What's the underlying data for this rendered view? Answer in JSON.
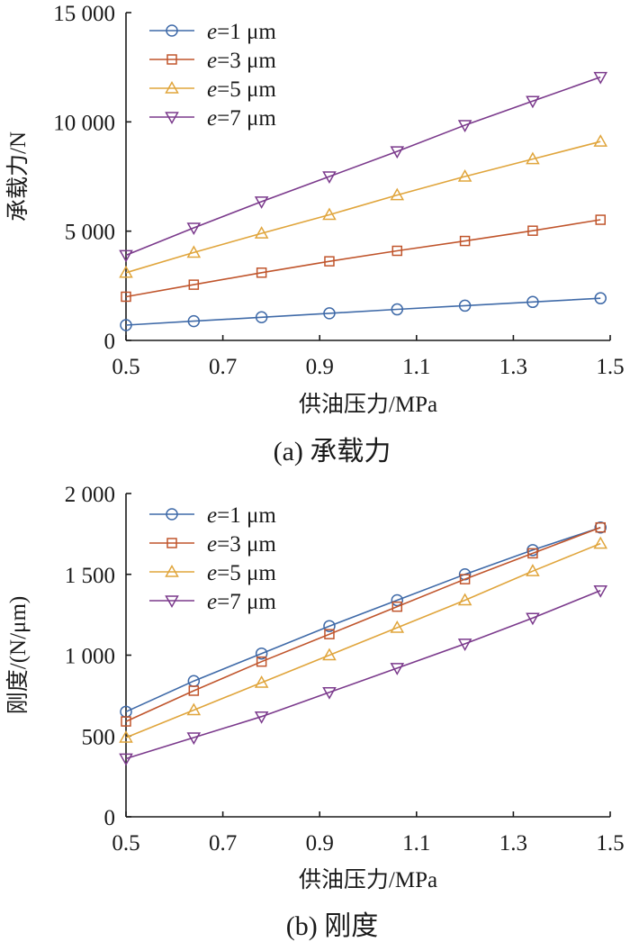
{
  "chart_data": [
    {
      "type": "line",
      "title": "",
      "caption": "(a)  承载力",
      "xlabel": "供油压力/MPa",
      "ylabel": "承载力/N",
      "xlim": [
        0.5,
        1.5
      ],
      "ylim": [
        0,
        15000
      ],
      "xticks": [
        0.5,
        0.7,
        0.9,
        1.1,
        1.3,
        1.5
      ],
      "xtick_labels": [
        "0.5",
        "0.7",
        "0.9",
        "1.1",
        "1.3",
        "1.5"
      ],
      "yticks": [
        0,
        5000,
        10000,
        15000
      ],
      "ytick_labels": [
        "0",
        "5 000",
        "10 000",
        "15 000"
      ],
      "grid": false,
      "legend_position": "top-left",
      "x": [
        0.5,
        0.64,
        0.78,
        0.92,
        1.06,
        1.2,
        1.34,
        1.48
      ],
      "series": [
        {
          "name": "e=1 μm",
          "name_var": "e",
          "name_rest": "=1 μm",
          "color": "#3f6aa8",
          "marker": "circle",
          "values": [
            700,
            880,
            1060,
            1240,
            1420,
            1590,
            1760,
            1930
          ]
        },
        {
          "name": "e=3 μm",
          "name_var": "e",
          "name_rest": "=3 μm",
          "color": "#c0552c",
          "marker": "square",
          "values": [
            2000,
            2550,
            3100,
            3620,
            4100,
            4550,
            5020,
            5520
          ]
        },
        {
          "name": "e=5 μm",
          "name_var": "e",
          "name_rest": "=5 μm",
          "color": "#e0a53c",
          "marker": "triangle-up",
          "values": [
            3100,
            4020,
            4900,
            5750,
            6650,
            7500,
            8300,
            9100
          ]
        },
        {
          "name": "e=7 μm",
          "name_var": "e",
          "name_rest": "=7 μm",
          "color": "#7b3a8c",
          "marker": "triangle-down",
          "values": [
            3900,
            5150,
            6350,
            7500,
            8650,
            9850,
            10950,
            12050
          ]
        }
      ]
    },
    {
      "type": "line",
      "title": "",
      "caption": "(b)  刚度",
      "xlabel": "供油压力/MPa",
      "ylabel": "刚度/(N/μm)",
      "xlim": [
        0.5,
        1.5
      ],
      "ylim": [
        0,
        2000
      ],
      "xticks": [
        0.5,
        0.7,
        0.9,
        1.1,
        1.3,
        1.5
      ],
      "xtick_labels": [
        "0.5",
        "0.7",
        "0.9",
        "1.1",
        "1.3",
        "1.5"
      ],
      "yticks": [
        0,
        500,
        1000,
        1500,
        2000
      ],
      "ytick_labels": [
        "0",
        "500",
        "1 000",
        "1 500",
        "2 000"
      ],
      "grid": false,
      "legend_position": "top-left",
      "x": [
        0.5,
        0.64,
        0.78,
        0.92,
        1.06,
        1.2,
        1.34,
        1.48
      ],
      "series": [
        {
          "name": "e=1 μm",
          "name_var": "e",
          "name_rest": "=1 μm",
          "color": "#3f6aa8",
          "marker": "circle",
          "values": [
            650,
            840,
            1010,
            1180,
            1340,
            1500,
            1650,
            1790
          ]
        },
        {
          "name": "e=3 μm",
          "name_var": "e",
          "name_rest": "=3 μm",
          "color": "#c0552c",
          "marker": "square",
          "values": [
            590,
            780,
            960,
            1130,
            1300,
            1470,
            1630,
            1790
          ]
        },
        {
          "name": "e=5 μm",
          "name_var": "e",
          "name_rest": "=5 μm",
          "color": "#e0a53c",
          "marker": "triangle-up",
          "values": [
            490,
            660,
            830,
            1000,
            1170,
            1340,
            1520,
            1690
          ]
        },
        {
          "name": "e=7 μm",
          "name_var": "e",
          "name_rest": "=7 μm",
          "color": "#7b3a8c",
          "marker": "triangle-down",
          "values": [
            360,
            490,
            620,
            770,
            920,
            1070,
            1230,
            1400
          ]
        }
      ]
    }
  ]
}
